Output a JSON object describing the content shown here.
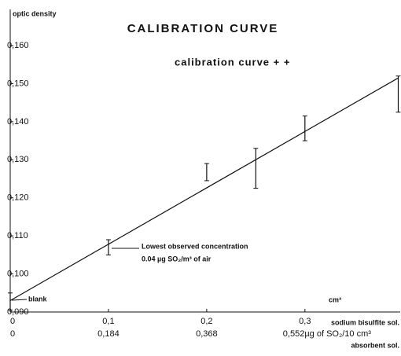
{
  "chart_data": {
    "type": "errorbar",
    "title": "CALIBRATION CURVE",
    "ylabel": "optic density",
    "legend": "calibration curve + +",
    "xlabel": "sodium bisulfite sol.",
    "x_unit": "cm³",
    "x2label": "absorbent sol.",
    "annotations": {
      "blank": "blank",
      "lowest": "Lowest observed concentration",
      "lowest_detail": "0.04 µg SO₂/m³ of air"
    },
    "xlim": [
      0,
      0.397
    ],
    "xticks": [
      0,
      {
        "value": 0.1,
        "label": "0,1"
      },
      {
        "value": 0.2,
        "label": "0,2"
      },
      {
        "value": 0.3,
        "label": "0,3"
      }
    ],
    "x2ticks": [
      "0",
      "0,184",
      "0,368",
      "0,552µg of SO₂/10 cm³"
    ],
    "ylim": [
      0.09,
      0.1695
    ],
    "yticks": [
      {
        "value": 0.09,
        "label": "0,090"
      },
      {
        "value": 0.1,
        "label": "0,100"
      },
      {
        "value": 0.11,
        "label": "0,110"
      },
      {
        "value": 0.12,
        "label": "0,120"
      },
      {
        "value": 0.13,
        "label": "0,130"
      },
      {
        "value": 0.14,
        "label": "0,140"
      },
      {
        "value": 0.15,
        "label": "0,150"
      },
      {
        "value": 0.16,
        "label": "0,160"
      }
    ],
    "measurements": {
      "x": [
        0,
        0.1,
        0.2,
        0.25,
        0.3,
        0.395
      ],
      "low": [
        0.0905,
        0.105,
        0.1245,
        0.1225,
        0.135,
        0.1425
      ],
      "high": [
        0.095,
        0.109,
        0.129,
        0.133,
        0.1415,
        0.152
      ]
    },
    "fit": {
      "x": [
        0,
        0.395
      ],
      "values": [
        0.093,
        0.1515
      ]
    },
    "color": "#111111"
  }
}
